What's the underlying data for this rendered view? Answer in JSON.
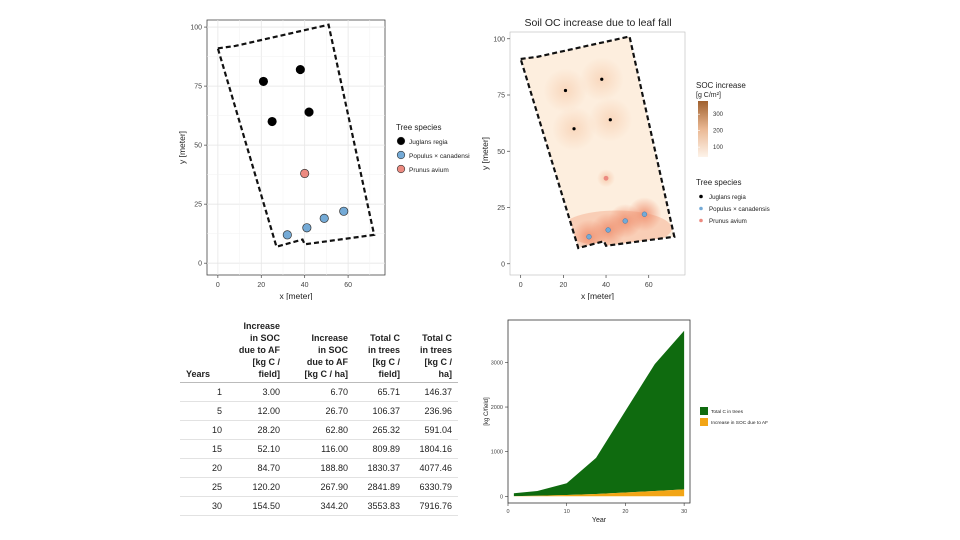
{
  "chart_data": [
    {
      "type": "scatter",
      "title": "",
      "xlabel": "x [meter]",
      "ylabel": "y [meter]",
      "xlim": [
        -5,
        77
      ],
      "ylim": [
        -5,
        103
      ],
      "xticks": [
        0,
        20,
        40,
        60
      ],
      "yticks": [
        0,
        25,
        50,
        75,
        100
      ],
      "grid": true,
      "legend_title": "Tree species",
      "legend_position": "right",
      "field_boundary": [
        [
          0,
          91
        ],
        [
          8,
          92
        ],
        [
          51,
          101
        ],
        [
          72,
          12
        ],
        [
          40,
          8
        ],
        [
          39,
          10
        ],
        [
          27,
          7
        ],
        [
          0,
          91
        ]
      ],
      "series": [
        {
          "name": "Juglans regia",
          "color": "#000000",
          "points": [
            [
              21,
              77
            ],
            [
              38,
              82
            ],
            [
              25,
              60
            ],
            [
              42,
              64
            ]
          ]
        },
        {
          "name": "Populus × canadensis",
          "color": "#74aad6",
          "points": [
            [
              32,
              12
            ],
            [
              41,
              15
            ],
            [
              49,
              19
            ],
            [
              58,
              22
            ]
          ]
        },
        {
          "name": "Prunus avium",
          "color": "#ec8a80",
          "points": [
            [
              40,
              38
            ]
          ]
        }
      ]
    },
    {
      "type": "heatmap",
      "title": "Soil OC increase due to leaf fall",
      "xlabel": "x [meter]",
      "ylabel": "y [meter]",
      "xlim": [
        -5,
        77
      ],
      "ylim": [
        -5,
        103
      ],
      "xticks": [
        0,
        20,
        40,
        60
      ],
      "yticks": [
        0,
        25,
        50,
        75,
        100
      ],
      "grid": false,
      "colorbar_title": "SOC increase",
      "colorbar_unit": "[g C/m²]",
      "colorbar_ticks": [
        100,
        200,
        300
      ],
      "legend_title": "Tree species",
      "legend_position": "right",
      "series": [
        {
          "name": "Juglans regia",
          "color": "#000000",
          "points": [
            [
              21,
              77
            ],
            [
              38,
              82
            ],
            [
              25,
              60
            ],
            [
              42,
              64
            ]
          ]
        },
        {
          "name": "Populus × canadensis",
          "color": "#74aad6",
          "points": [
            [
              32,
              12
            ],
            [
              41,
              15
            ],
            [
              49,
              19
            ],
            [
              58,
              22
            ]
          ]
        },
        {
          "name": "Prunus avium",
          "color": "#ec8a80",
          "points": [
            [
              40,
              38
            ]
          ]
        }
      ]
    },
    {
      "type": "table",
      "columns": [
        "Years",
        "Increase in SOC due to AF [kg C / field]",
        "Increase in SOC due to AF [kg C / ha]",
        "Total C in trees [kg C / field]",
        "Total C in trees [kg C / ha]"
      ],
      "header_lines": [
        [
          "Years"
        ],
        [
          "Increase",
          "in SOC",
          "due to AF",
          "[kg C /",
          "field]"
        ],
        [
          "Increase",
          "in SOC",
          "due to AF",
          "[kg C / ha]"
        ],
        [
          "Total C",
          "in trees",
          "[kg C /",
          "field]"
        ],
        [
          "Total C",
          "in trees",
          "[kg C /",
          "ha]"
        ]
      ],
      "rows": [
        [
          "1",
          "3.00",
          "6.70",
          "65.71",
          "146.37"
        ],
        [
          "5",
          "12.00",
          "26.70",
          "106.37",
          "236.96"
        ],
        [
          "10",
          "28.20",
          "62.80",
          "265.32",
          "591.04"
        ],
        [
          "15",
          "52.10",
          "116.00",
          "809.89",
          "1804.16"
        ],
        [
          "20",
          "84.70",
          "188.80",
          "1830.37",
          "4077.46"
        ],
        [
          "25",
          "120.20",
          "267.90",
          "2841.89",
          "6330.79"
        ],
        [
          "30",
          "154.50",
          "344.20",
          "3553.83",
          "7916.76"
        ]
      ]
    },
    {
      "type": "area",
      "title": "",
      "xlabel": "Year",
      "ylabel": "[kg C/field]",
      "xlim": [
        0,
        31
      ],
      "ylim": [
        -150,
        3950
      ],
      "xticks": [
        0,
        10,
        20,
        30
      ],
      "yticks": [
        0,
        1000,
        2000,
        3000
      ],
      "grid": false,
      "stacked": true,
      "legend_position": "right",
      "x": [
        1,
        5,
        10,
        15,
        20,
        25,
        30
      ],
      "series": [
        {
          "name": "Increase in SOC due to AF",
          "color": "#f2a516",
          "values": [
            3.0,
            12.0,
            28.2,
            52.1,
            84.7,
            120.2,
            154.5
          ]
        },
        {
          "name": "Total C in trees",
          "color": "#0f6b0f",
          "values": [
            65.71,
            106.37,
            265.32,
            809.89,
            1830.37,
            2841.89,
            3553.83
          ]
        }
      ]
    }
  ]
}
